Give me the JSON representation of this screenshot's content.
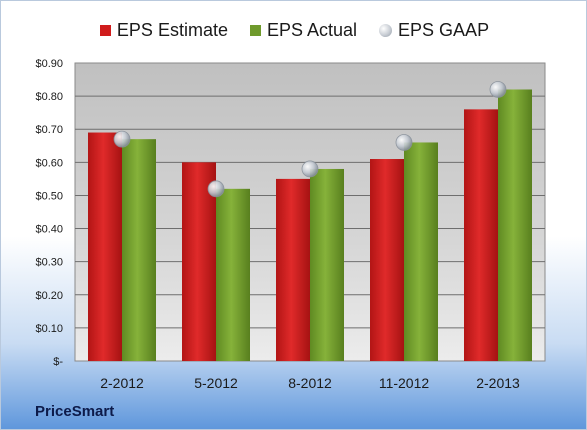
{
  "legend": {
    "estimate": "EPS Estimate",
    "actual": "EPS Actual",
    "gaap": "EPS GAAP"
  },
  "footer": {
    "company": "PriceSmart"
  },
  "colors": {
    "estimate": "#d01c1c",
    "actual": "#6f9a2c",
    "gaap": "#b8bec7",
    "plot_top": "#c0c0c0",
    "plot_bottom": "#ebebeb"
  },
  "chart_data": {
    "type": "bar",
    "categories": [
      "2-2012",
      "5-2012",
      "8-2012",
      "11-2012",
      "2-2013"
    ],
    "series": [
      {
        "name": "EPS Estimate",
        "values": [
          0.69,
          0.6,
          0.55,
          0.61,
          0.76
        ]
      },
      {
        "name": "EPS Actual",
        "values": [
          0.67,
          0.52,
          0.58,
          0.66,
          0.82
        ]
      },
      {
        "name": "EPS GAAP",
        "values": [
          0.67,
          0.52,
          0.58,
          0.66,
          0.82
        ]
      }
    ],
    "yticks": [
      "$-",
      "$0.10",
      "$0.20",
      "$0.30",
      "$0.40",
      "$0.50",
      "$0.60",
      "$0.70",
      "$0.80",
      "$0.90"
    ],
    "ylim": [
      0,
      0.9
    ],
    "grid": true,
    "legend_position": "top"
  }
}
